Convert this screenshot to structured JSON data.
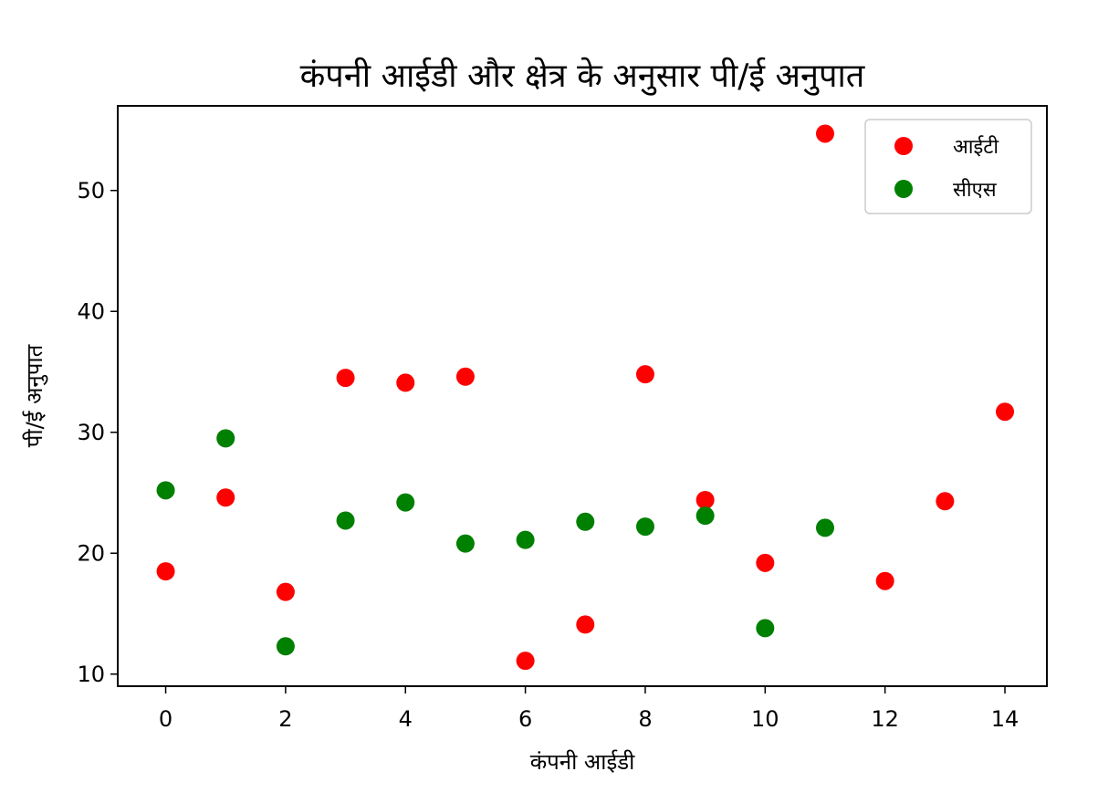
{
  "chart_data": {
    "type": "scatter",
    "title": "कंपनी आईडी और क्षेत्र के अनुसार पी/ई अनुपात",
    "xlabel": "कंपनी आईडी",
    "ylabel": "पी/ई अनुपात",
    "xlim": [
      -0.8,
      14.7
    ],
    "ylim": [
      9,
      57
    ],
    "xticks": [
      0,
      2,
      4,
      6,
      8,
      10,
      12,
      14
    ],
    "yticks": [
      10,
      20,
      30,
      40,
      50
    ],
    "grid": false,
    "legend_position": "top-right",
    "series": [
      {
        "name": "आईटी",
        "color": "#ff0000",
        "points": [
          {
            "x": 0,
            "y": 18.5
          },
          {
            "x": 1,
            "y": 24.6
          },
          {
            "x": 2,
            "y": 16.8
          },
          {
            "x": 3,
            "y": 34.5
          },
          {
            "x": 4,
            "y": 34.1
          },
          {
            "x": 5,
            "y": 34.6
          },
          {
            "x": 6,
            "y": 11.1
          },
          {
            "x": 7,
            "y": 14.1
          },
          {
            "x": 8,
            "y": 34.8
          },
          {
            "x": 9,
            "y": 24.4
          },
          {
            "x": 10,
            "y": 19.2
          },
          {
            "x": 11,
            "y": 54.7
          },
          {
            "x": 12,
            "y": 17.7
          },
          {
            "x": 13,
            "y": 24.3
          },
          {
            "x": 14,
            "y": 31.7
          }
        ]
      },
      {
        "name": "सीएस",
        "color": "#008000",
        "points": [
          {
            "x": 0,
            "y": 25.2
          },
          {
            "x": 1,
            "y": 29.5
          },
          {
            "x": 2,
            "y": 12.3
          },
          {
            "x": 3,
            "y": 22.7
          },
          {
            "x": 4,
            "y": 24.2
          },
          {
            "x": 5,
            "y": 20.8
          },
          {
            "x": 6,
            "y": 21.1
          },
          {
            "x": 7,
            "y": 22.6
          },
          {
            "x": 8,
            "y": 22.2
          },
          {
            "x": 9,
            "y": 23.1
          },
          {
            "x": 10,
            "y": 13.8
          },
          {
            "x": 11,
            "y": 22.1
          }
        ]
      }
    ]
  }
}
